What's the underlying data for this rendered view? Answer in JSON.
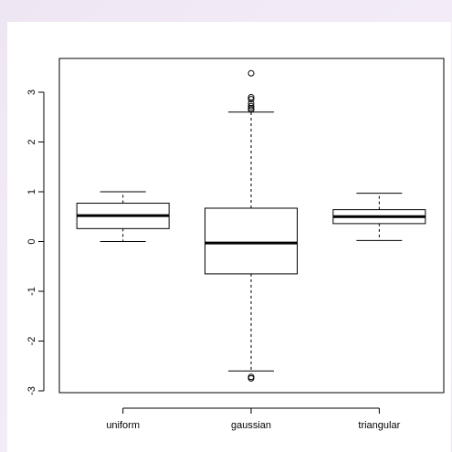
{
  "chart_data": {
    "type": "boxplot",
    "title": "",
    "xlabel": "",
    "ylabel": "",
    "ylim": [
      -3,
      3.5
    ],
    "yticks": [
      -3,
      -2,
      -1,
      0,
      1,
      2,
      3
    ],
    "categories": [
      "uniform",
      "gaussian",
      "triangular"
    ],
    "series": [
      {
        "category": "uniform",
        "whisker_low": 0.0,
        "q1": 0.26,
        "median": 0.52,
        "q3": 0.77,
        "whisker_high": 1.0,
        "outliers": []
      },
      {
        "category": "gaussian",
        "whisker_low": -2.6,
        "q1": -0.65,
        "median": -0.03,
        "q3": 0.67,
        "whisker_high": 2.6,
        "outliers": [
          2.65,
          2.68,
          2.72,
          2.78,
          2.86,
          2.9,
          3.38,
          -2.72,
          -2.75
        ]
      },
      {
        "category": "triangular",
        "whisker_low": 0.02,
        "q1": 0.36,
        "median": 0.5,
        "q3": 0.64,
        "whisker_high": 0.97,
        "outliers": []
      }
    ],
    "grid": false,
    "legend": "none"
  }
}
